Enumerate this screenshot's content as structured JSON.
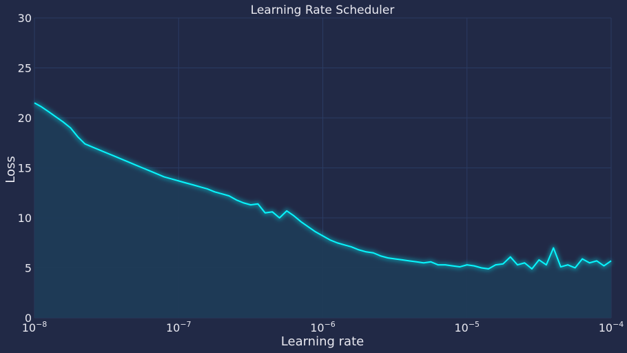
{
  "chart_data": {
    "type": "line",
    "title": "Learning Rate Scheduler",
    "xlabel": "Learning rate",
    "ylabel": "Loss",
    "x_scale": "log",
    "xlim": [
      1e-08,
      0.0001
    ],
    "ylim": [
      0,
      30
    ],
    "grid": true,
    "x_ticks": [
      {
        "value": 1e-08,
        "base": "10",
        "exp": "−8"
      },
      {
        "value": 1e-07,
        "base": "10",
        "exp": "−7"
      },
      {
        "value": 1e-06,
        "base": "10",
        "exp": "−6"
      },
      {
        "value": 1e-05,
        "base": "10",
        "exp": "−5"
      },
      {
        "value": 0.0001,
        "base": "10",
        "exp": "−4"
      }
    ],
    "y_ticks": [
      {
        "value": 0,
        "label": "0"
      },
      {
        "value": 5,
        "label": "5"
      },
      {
        "value": 10,
        "label": "10"
      },
      {
        "value": 15,
        "label": "15"
      },
      {
        "value": 20,
        "label": "20"
      },
      {
        "value": 25,
        "label": "25"
      },
      {
        "value": 30,
        "label": "30"
      }
    ],
    "colors": {
      "background": "#212946",
      "line": "#08F7FE",
      "fill": "#1f3b57",
      "grid": "#2a3b63",
      "text": "#e8e8f0"
    },
    "series": [
      {
        "x": [
          1e-08,
          1.12e-08,
          1.26e-08,
          1.41e-08,
          1.58e-08,
          1.78e-08,
          2e-08,
          2.24e-08,
          2.51e-08,
          2.82e-08,
          3.16e-08,
          3.55e-08,
          3.98e-08,
          4.47e-08,
          5.01e-08,
          5.62e-08,
          6.31e-08,
          7.08e-08,
          7.94e-08,
          8.91e-08,
          1e-07,
          1.12e-07,
          1.26e-07,
          1.41e-07,
          1.58e-07,
          1.78e-07,
          2e-07,
          2.24e-07,
          2.51e-07,
          2.82e-07,
          3.16e-07,
          3.55e-07,
          3.98e-07,
          4.47e-07,
          5.01e-07,
          5.62e-07,
          6.31e-07,
          7.08e-07,
          7.94e-07,
          8.91e-07,
          1e-06,
          1.12e-06,
          1.26e-06,
          1.41e-06,
          1.58e-06,
          1.78e-06,
          2e-06,
          2.24e-06,
          2.51e-06,
          2.82e-06,
          3.16e-06,
          3.55e-06,
          3.98e-06,
          4.47e-06,
          5.01e-06,
          5.62e-06,
          6.31e-06,
          7.08e-06,
          7.94e-06,
          8.91e-06,
          1e-05,
          1.12e-05,
          1.26e-05,
          1.41e-05,
          1.58e-05,
          1.78e-05,
          2e-05,
          2.24e-05,
          2.51e-05,
          2.82e-05,
          3.16e-05,
          3.55e-05,
          3.98e-05,
          4.47e-05,
          5.01e-05,
          5.62e-05,
          6.31e-05,
          7.08e-05,
          7.94e-05,
          8.91e-05,
          0.0001
        ],
        "y": [
          21.5,
          21.1,
          20.6,
          20.1,
          19.6,
          19.0,
          18.1,
          17.4,
          17.1,
          16.8,
          16.5,
          16.2,
          15.9,
          15.6,
          15.3,
          15.0,
          14.7,
          14.4,
          14.1,
          13.9,
          13.7,
          13.5,
          13.3,
          13.1,
          12.9,
          12.6,
          12.4,
          12.2,
          11.8,
          11.5,
          11.3,
          11.4,
          10.5,
          10.6,
          10.0,
          10.7,
          10.2,
          9.6,
          9.1,
          8.6,
          8.2,
          7.8,
          7.5,
          7.3,
          7.1,
          6.8,
          6.6,
          6.5,
          6.2,
          6.0,
          5.9,
          5.8,
          5.7,
          5.6,
          5.5,
          5.6,
          5.3,
          5.3,
          5.2,
          5.1,
          5.3,
          5.2,
          5.0,
          4.9,
          5.3,
          5.4,
          6.1,
          5.3,
          5.5,
          4.9,
          5.8,
          5.3,
          7.0,
          5.1,
          5.3,
          5.0,
          5.9,
          5.5,
          5.7,
          5.2,
          5.7
        ]
      }
    ]
  }
}
